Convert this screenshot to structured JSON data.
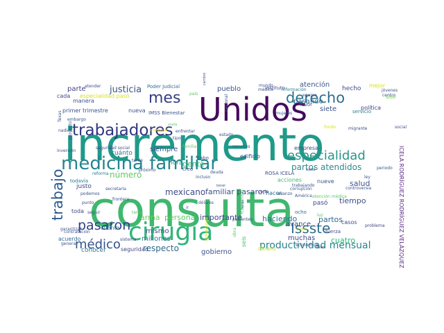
{
  "words": [
    {
      "t": "consulta",
      "c": "#3fb86e"
    },
    {
      "t": "incremento",
      "c": "#1f9a8a"
    },
    {
      "t": "Unidos",
      "c": "#460a5d"
    },
    {
      "t": "cirugía",
      "c": "#31b57b"
    },
    {
      "t": "medicina familiar",
      "c": "#25848e"
    },
    {
      "t": "trabajadores",
      "c": "#30357f"
    },
    {
      "t": "mes",
      "c": "#333e84"
    },
    {
      "t": "derecho",
      "c": "#2a6f8e"
    },
    {
      "t": "especialidad",
      "c": "#27958a"
    },
    {
      "t": "pasaron",
      "c": "#2d3e87"
    },
    {
      "t": "Issste",
      "c": "#2f6c8e"
    },
    {
      "t": "médico",
      "c": "#32518c"
    },
    {
      "t": "trabajo",
      "c": "#2d5a8c"
    },
    {
      "t": "productividad mensual",
      "c": "#26838f"
    },
    {
      "t": "partos atendidos",
      "c": "#2d8a8e"
    },
    {
      "t": "justicia",
      "c": "#3b528b"
    },
    {
      "t": "gente",
      "c": "#35b779"
    },
    {
      "t": "mexicano",
      "c": "#3e4a89"
    },
    {
      "t": "respecto",
      "c": "#31688e"
    },
    {
      "t": "familiar pasaron",
      "c": "#3d4e8a"
    },
    {
      "t": "salud",
      "c": "#3a538b"
    },
    {
      "t": "partos",
      "c": "#2f6b8e"
    },
    {
      "t": "tiempo",
      "c": "#3b518b"
    },
    {
      "t": "cuatro",
      "c": "#30b57a"
    },
    {
      "t": "número",
      "c": "#5ec962"
    },
    {
      "t": "arma",
      "c": "#6ece58"
    },
    {
      "t": "persona",
      "c": "#5ec962"
    },
    {
      "t": "importante",
      "c": "#3f4788"
    },
    {
      "t": "haciendo",
      "c": "#2b758e"
    },
    {
      "t": "atención",
      "c": "#3b528b"
    },
    {
      "t": "siete",
      "c": "#3b528b"
    },
    {
      "t": "pasando",
      "c": "#2f6c8e"
    },
    {
      "t": "hecho",
      "c": "#3e4a89"
    },
    {
      "t": "mejor",
      "c": "#d2e21b"
    },
    {
      "t": "política",
      "c": "#423f85"
    },
    {
      "t": "pueblo",
      "c": "#3b528b"
    },
    {
      "t": "parte",
      "c": "#404387"
    },
    {
      "t": "especialidad pasó",
      "c": "#d5e21a"
    },
    {
      "t": "Poder Judicial",
      "c": "#2f6c8e"
    },
    {
      "t": "instituto",
      "c": "#3e4a89"
    },
    {
      "t": "siempre",
      "c": "#3b528b"
    },
    {
      "t": "cuánto",
      "c": "#2a788e"
    },
    {
      "t": "mismo",
      "c": "#3e4a89"
    },
    {
      "t": "millones",
      "c": "#2a788e"
    },
    {
      "t": "gobierno",
      "c": "#3b528b"
    },
    {
      "t": "muchas",
      "c": "#414487"
    },
    {
      "t": "avance",
      "c": "#3e4a89"
    },
    {
      "t": "casos",
      "c": "#3e4a89"
    },
    {
      "t": "hora",
      "c": "#1f9e89"
    },
    {
      "t": "toda",
      "c": "#3f4788"
    },
    {
      "t": "justo",
      "c": "#3e4a89"
    },
    {
      "t": "todavía",
      "c": "#2a788e"
    },
    {
      "t": "empresa",
      "c": "#3e4a89"
    },
    {
      "t": "nueva",
      "c": "#3b528b"
    },
    {
      "t": "servicio",
      "c": "#2a788e"
    },
    {
      "t": "primer trimestre",
      "c": "#3b528b"
    },
    {
      "t": "acuerdo",
      "c": "#2f6c8e"
    },
    {
      "t": "conocer",
      "c": "#2a788e"
    },
    {
      "t": "cuenta",
      "c": "#2a788e"
    },
    {
      "t": "seguridad",
      "c": "#3f4788"
    },
    {
      "t": "manera",
      "c": "#3b528b"
    },
    {
      "t": "cada",
      "c": "#3e4a89"
    },
    {
      "t": "nueve",
      "c": "#3b528b"
    },
    {
      "t": "ICELA RODRÍGUEZ RODRÍGUEZ VELÁZQUEZ",
      "c": "#5a2d83"
    },
    {
      "t": "ROSA ICELA",
      "c": "#3e4a89"
    },
    {
      "t": "pasó",
      "c": "#3e4a89"
    },
    {
      "t": "hacen",
      "c": "#2f6c8e"
    },
    {
      "t": "acciones",
      "c": "#3fbc73"
    },
    {
      "t": "seis",
      "c": "#4ac16d"
    },
    {
      "t": "dinero",
      "c": "#b5de2b"
    },
    {
      "t": "edificio",
      "c": "#3e4a89"
    },
    {
      "t": "creo",
      "c": "#3b528b"
    },
    {
      "t": "ocho",
      "c": "#2f6c8e"
    },
    {
      "t": "favor",
      "c": "#3e4a89"
    },
    {
      "t": "fuerza",
      "c": "#3e4a89"
    },
    {
      "t": "problema",
      "c": "#414487"
    },
    {
      "t": "cabo",
      "c": "#3e4a89"
    },
    {
      "t": "corte",
      "c": "#3e4a89"
    },
    {
      "t": "controversia",
      "c": "#3b528b"
    },
    {
      "t": "mundo",
      "c": "#3b528b"
    },
    {
      "t": "médica",
      "c": "#3b528b"
    },
    {
      "t": "información",
      "c": "#2a788e"
    },
    {
      "t": "equipo",
      "c": "#3b528b"
    },
    {
      "t": "jóvenes",
      "c": "#3b528b"
    },
    {
      "t": "sido",
      "c": "#7ad151"
    },
    {
      "t": "centro",
      "c": "#3b528b"
    },
    {
      "t": "social",
      "c": "#3b528b"
    },
    {
      "t": "migrante",
      "c": "#3e4a89"
    },
    {
      "t": "fondo",
      "c": "#d2e21b"
    },
    {
      "t": "IMSS Bienestar",
      "c": "#3b528b"
    },
    {
      "t": "Texas",
      "c": "#3b528b"
    },
    {
      "t": "embargo",
      "c": "#3b528b"
    },
    {
      "t": "nadie",
      "c": "#3b528b"
    },
    {
      "t": "proyecto",
      "c": "#3b528b"
    },
    {
      "t": "inversión",
      "c": "#3b528b"
    },
    {
      "t": "seguridad social",
      "c": "#3e4a89"
    },
    {
      "t": "visita",
      "c": "#5ec962"
    },
    {
      "t": "comercial",
      "c": "#fde725"
    },
    {
      "t": "enfrentar",
      "c": "#3b528b"
    },
    {
      "t": "familia",
      "c": "#5ec962"
    },
    {
      "t": "frontera",
      "c": "#3e4a89"
    },
    {
      "t": "punto",
      "c": "#3e4a89"
    },
    {
      "t": "podemos",
      "c": "#3b528b"
    },
    {
      "t": "contratación",
      "c": "#3b528b"
    },
    {
      "t": "garantizar",
      "c": "#3b528b"
    },
    {
      "t": "general",
      "c": "#3b528b"
    },
    {
      "t": "seguir",
      "c": "#3b528b"
    },
    {
      "t": "reforma",
      "c": "#2a788e"
    },
    {
      "t": "secretaría",
      "c": "#3b528b"
    },
    {
      "t": "presidencia",
      "c": "#4ac16d"
    },
    {
      "t": "corrupción",
      "c": "#3b528b"
    },
    {
      "t": "América",
      "c": "#3b528b"
    },
    {
      "t": "avanzo",
      "c": "#3b528b"
    },
    {
      "t": "luz",
      "c": "#4ac16d"
    },
    {
      "t": "bien",
      "c": "#3b528b"
    },
    {
      "t": "económico",
      "c": "#3b528b"
    },
    {
      "t": "crisis",
      "c": "#d2e21b"
    },
    {
      "t": "periodo",
      "c": "#3b528b"
    },
    {
      "t": "sistema",
      "c": "#3b528b"
    },
    {
      "t": "atender",
      "c": "#3b528b"
    },
    {
      "t": "país",
      "c": "#5ec962"
    },
    {
      "t": "cambio",
      "c": "#3b528b"
    },
    {
      "t": "nacional",
      "c": "#3b528b"
    },
    {
      "t": "incluso",
      "c": "#3b528b"
    },
    {
      "t": "próximo",
      "c": "#3b528b"
    },
    {
      "t": "tener",
      "c": "#3b528b"
    },
    {
      "t": "ir",
      "c": "#3b528b"
    },
    {
      "t": "horas",
      "c": "#3b528b"
    },
    {
      "t": "dólares",
      "c": "#3b528b"
    },
    {
      "t": "año pasado",
      "c": "#d2e21b"
    },
    {
      "t": "pacientes",
      "c": "#3b528b"
    },
    {
      "t": "atención médica",
      "c": "#5ec962"
    },
    {
      "t": "ley",
      "c": "#3b528b"
    },
    {
      "t": "caso",
      "c": "#3b528b"
    },
    {
      "t": "trabajando",
      "c": "#3b528b"
    },
    {
      "t": "deuda",
      "c": "#3b528b"
    },
    {
      "t": "tema",
      "c": "#5ec962"
    },
    {
      "t": "obra",
      "c": "#5ec962"
    },
    {
      "t": "mujeres",
      "c": "#3b528b"
    },
    {
      "t": "estado",
      "c": "#3b528b"
    },
    {
      "t": "recursos",
      "c": "#3b528b"
    },
    {
      "t": "tipo",
      "c": "#3b528b"
    },
    {
      "t": "tarde",
      "c": "#3b528b"
    },
    {
      "t": "vida",
      "c": "#3b528b"
    }
  ]
}
